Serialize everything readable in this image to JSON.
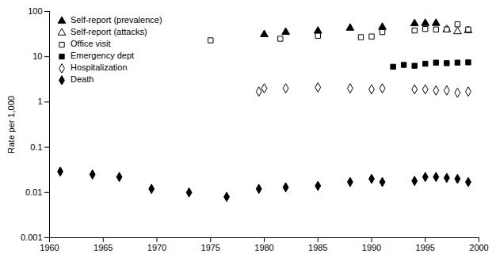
{
  "chart_data": {
    "type": "scatter",
    "y_label": "Rate per 1,000",
    "log": "y",
    "grid": false,
    "legend": "top-left",
    "x": [
      1961,
      1964,
      1966.5,
      1969.5,
      1973,
      1975,
      1976.5,
      1979.5,
      1980,
      1981.5,
      1982,
      1985,
      1988,
      1989,
      1990,
      1991,
      1992,
      1993,
      1994,
      1995,
      1996,
      1997,
      1998,
      1999
    ],
    "xlim": [
      1960,
      2000
    ],
    "xticks": [
      1960,
      1965,
      1970,
      1975,
      1980,
      1985,
      1990,
      1995,
      2000
    ],
    "ylim": [
      0.001,
      100
    ],
    "yticks": [
      0.001,
      0.01,
      0.1,
      1,
      10,
      100
    ],
    "series": [
      {
        "name": "Self-report (prevalence)",
        "color": "#000000",
        "marker": "triangle",
        "values": [
          null,
          null,
          null,
          null,
          null,
          null,
          null,
          null,
          31,
          null,
          35,
          37,
          43,
          null,
          null,
          45,
          null,
          null,
          54,
          55,
          55,
          null,
          null,
          null
        ]
      },
      {
        "name": "Self-report (attacks)",
        "color": "#000000",
        "marker": "triangle-open",
        "values": [
          null,
          null,
          null,
          null,
          null,
          null,
          null,
          null,
          null,
          null,
          null,
          null,
          null,
          null,
          null,
          null,
          null,
          null,
          null,
          null,
          null,
          40,
          36,
          38
        ]
      },
      {
        "name": "Office visit",
        "color": "#000000",
        "marker": "square-open",
        "values": [
          null,
          null,
          null,
          null,
          null,
          23,
          null,
          null,
          null,
          25,
          null,
          29,
          null,
          27,
          28,
          35,
          null,
          null,
          38,
          41,
          40,
          40,
          52,
          40
        ]
      },
      {
        "name": "Emergency dept",
        "color": "#000000",
        "marker": "square",
        "values": [
          null,
          null,
          null,
          null,
          null,
          null,
          null,
          null,
          null,
          null,
          null,
          null,
          null,
          null,
          null,
          null,
          6,
          6.6,
          6.3,
          7,
          7.4,
          7.2,
          7.4,
          7.5
        ]
      },
      {
        "name": "Hospitalization",
        "color": "#000000",
        "marker": "diamond-open",
        "values": [
          null,
          null,
          null,
          null,
          null,
          null,
          null,
          1.7,
          2.0,
          null,
          2.0,
          2.1,
          2.0,
          null,
          1.9,
          2.0,
          null,
          null,
          1.9,
          1.9,
          1.8,
          1.8,
          1.6,
          1.7
        ]
      },
      {
        "name": "Death",
        "color": "#000000",
        "marker": "diamond",
        "values": [
          0.029,
          0.025,
          0.022,
          0.012,
          0.01,
          null,
          0.008,
          0.012,
          null,
          null,
          0.013,
          0.014,
          0.017,
          null,
          0.02,
          0.017,
          null,
          null,
          0.018,
          0.022,
          0.022,
          0.021,
          0.02,
          0.017
        ]
      }
    ]
  }
}
